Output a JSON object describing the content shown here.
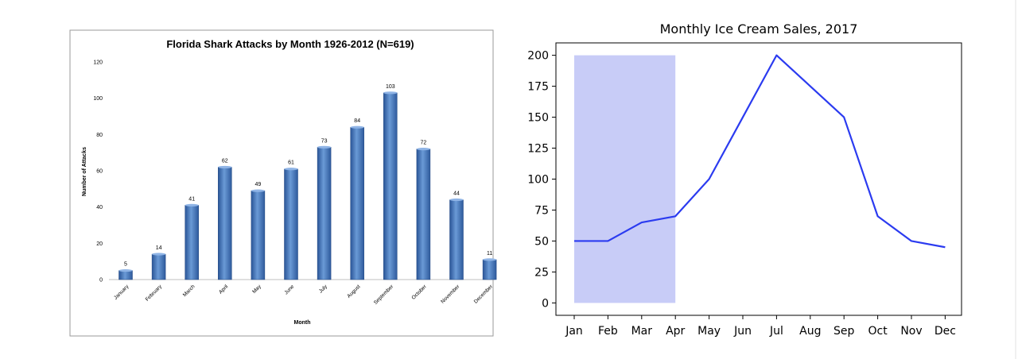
{
  "chart_data": [
    {
      "type": "bar",
      "title": "Florida Shark Attacks by Month 1926-2012 (N=619)",
      "xlabel": "Month",
      "ylabel": "Number of Attacks",
      "ylim": [
        0,
        120
      ],
      "yticks": [
        0,
        20,
        40,
        60,
        80,
        100,
        120
      ],
      "categories": [
        "January",
        "February",
        "March",
        "April",
        "May",
        "June",
        "July",
        "August",
        "September",
        "October",
        "November",
        "December"
      ],
      "values": [
        5,
        14,
        41,
        62,
        49,
        61,
        73,
        84,
        103,
        72,
        44,
        11
      ],
      "data_labels": [
        "5",
        "14",
        "41",
        "62",
        "49",
        "61",
        "73",
        "84",
        "103",
        "72",
        "44",
        "11"
      ],
      "bar_color": "#3d6fb3",
      "grid": false,
      "legend": "none"
    },
    {
      "type": "line",
      "title": "Monthly Ice Cream Sales, 2017",
      "xlabel": "",
      "ylabel": "",
      "ylim": [
        -10,
        210
      ],
      "yticks": [
        0,
        25,
        50,
        75,
        100,
        125,
        150,
        175,
        200
      ],
      "categories": [
        "Jan",
        "Feb",
        "Mar",
        "Apr",
        "May",
        "Jun",
        "Jul",
        "Aug",
        "Sep",
        "Oct",
        "Nov",
        "Dec"
      ],
      "values": [
        50,
        50,
        65,
        70,
        100,
        150,
        200,
        175,
        150,
        70,
        50,
        45
      ],
      "line_color": "#2b3bf0",
      "highlight_span": {
        "from": "Jan",
        "to": "Apr",
        "y_from": 0,
        "y_to": 200,
        "color": "#c8ccf7"
      },
      "grid": false,
      "legend": "none"
    }
  ]
}
